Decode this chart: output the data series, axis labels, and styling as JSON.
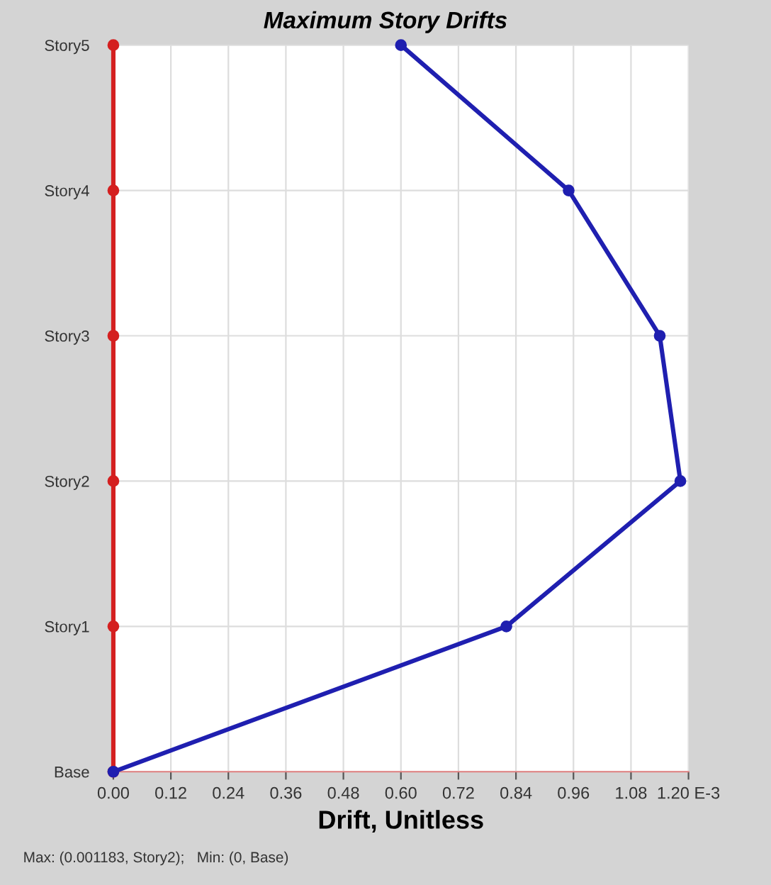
{
  "chart_data": {
    "type": "line",
    "orientation": "horizontal",
    "title": "Maximum Story Drifts",
    "xlabel": "Drift, Unitless",
    "categories": [
      "Story5",
      "Story4",
      "Story3",
      "Story2",
      "Story1",
      "Base"
    ],
    "series": [
      {
        "color": "#d42020",
        "values": [
          0,
          0,
          0,
          0,
          0,
          0
        ]
      },
      {
        "color": "#1f1fb0",
        "values": [
          0.6,
          0.95,
          1.14,
          1.183,
          0.82,
          0
        ]
      }
    ],
    "xlim": [
      0,
      1.2
    ],
    "xticks": [
      {
        "value": 0,
        "label": "0.00"
      },
      {
        "value": 0.12,
        "label": "0.12"
      },
      {
        "value": 0.24,
        "label": "0.24"
      },
      {
        "value": 0.36,
        "label": "0.36"
      },
      {
        "value": 0.48,
        "label": "0.48"
      },
      {
        "value": 0.6,
        "label": "0.60"
      },
      {
        "value": 0.72,
        "label": "0.72"
      },
      {
        "value": 0.84,
        "label": "0.84"
      },
      {
        "value": 0.96,
        "label": "0.96"
      },
      {
        "value": 1.08,
        "label": "1.08"
      },
      {
        "value": 1.2,
        "label": "1.20 E-3"
      }
    ],
    "grid": true,
    "marker": "circle",
    "line_style": "solid",
    "annotations": [
      "Max: (0.001183, Story2);   Min: (0, Base)"
    ]
  }
}
